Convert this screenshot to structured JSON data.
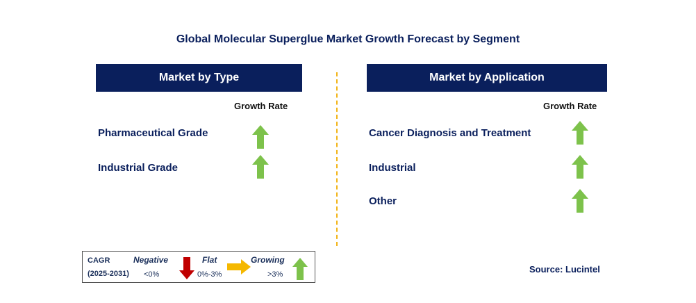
{
  "title": "Global Molecular Superglue Market Growth Forecast by Segment",
  "left_panel": {
    "header": "Market by Type",
    "growth_label": "Growth Rate",
    "items": [
      {
        "label": "Pharmaceutical Grade",
        "trend": "growing"
      },
      {
        "label": "Industrial Grade",
        "trend": "growing"
      }
    ]
  },
  "right_panel": {
    "header": "Market by Application",
    "growth_label": "Growth Rate",
    "items": [
      {
        "label": "Cancer Diagnosis and Treatment",
        "trend": "growing"
      },
      {
        "label": "Industrial",
        "trend": "growing"
      },
      {
        "label": "Other",
        "trend": "growing"
      }
    ]
  },
  "legend": {
    "cagr": "CAGR",
    "period": "(2025-2031)",
    "negative": {
      "label": "Negative",
      "range": "<0%",
      "icon": "down-arrow-icon"
    },
    "flat": {
      "label": "Flat",
      "range": "0%-3%",
      "icon": "right-arrow-icon"
    },
    "growing": {
      "label": "Growing",
      "range": ">3%",
      "icon": "up-arrow-icon"
    }
  },
  "source": "Source: Lucintel",
  "colors": {
    "header_bg": "#0a1f5c",
    "growing": "#7dc24b",
    "negative": "#c00000",
    "flat": "#f5b800",
    "divider": "#f2b417"
  }
}
